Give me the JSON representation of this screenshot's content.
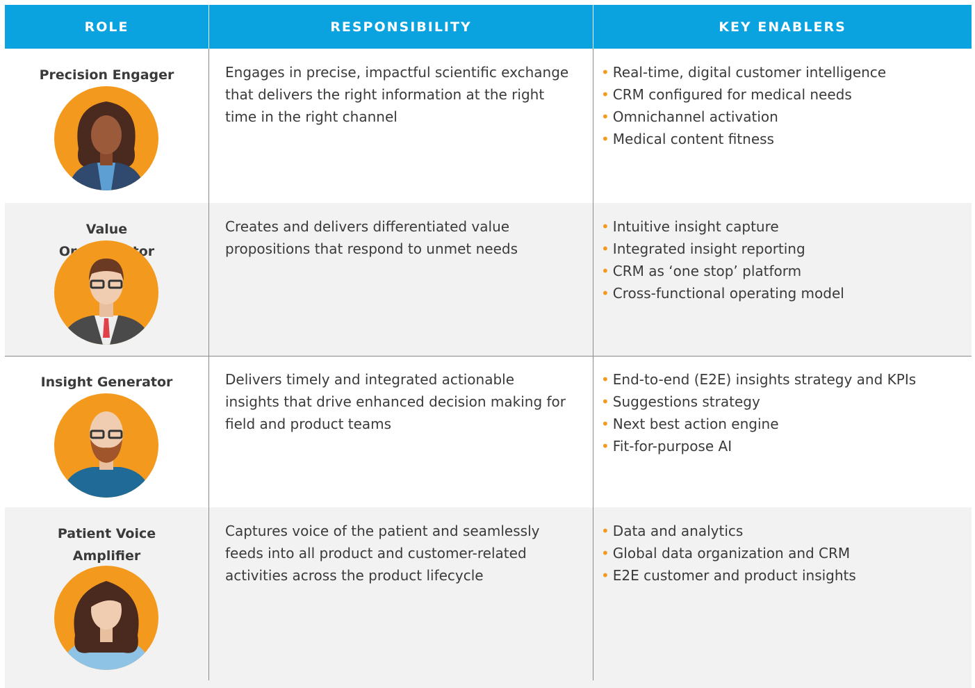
{
  "header": {
    "columns": [
      "ROLE",
      "RESPONSIBILITY",
      "KEY ENABLERS"
    ]
  },
  "rows": [
    {
      "role": "Precision Engager",
      "responsibility": "Engages in precise, impactful scientific exchange that delivers the right information at the right time in the right channel",
      "enablers": [
        "Real-time, digital customer intelligence",
        "CRM configured for medical needs",
        "Omnichannel activation",
        "Medical content fitness"
      ]
    },
    {
      "role": "Value Orchestrator",
      "responsibility": "Creates and delivers differentiated value propositions that respond to unmet needs",
      "enablers": [
        "Intuitive insight capture",
        "Integrated insight reporting",
        "CRM as ‘one stop’ platform",
        "Cross-functional operating model"
      ]
    },
    {
      "role": "Insight Generator",
      "responsibility": "Delivers timely and integrated actionable insights that drive enhanced decision making for field and product teams",
      "enablers": [
        "End-to-end (E2E) insights strategy and KPIs",
        "Suggestions strategy",
        "Next best action engine",
        "Fit-for-purpose AI"
      ]
    },
    {
      "role": "Patient Voice Amplifier",
      "responsibility": "Captures voice of the patient and seamlessly feeds into all product and customer-related activities across the product lifecycle",
      "enablers": [
        "Data and analytics",
        "Global data organization and CRM",
        "E2E customer and product insights"
      ]
    }
  ]
}
